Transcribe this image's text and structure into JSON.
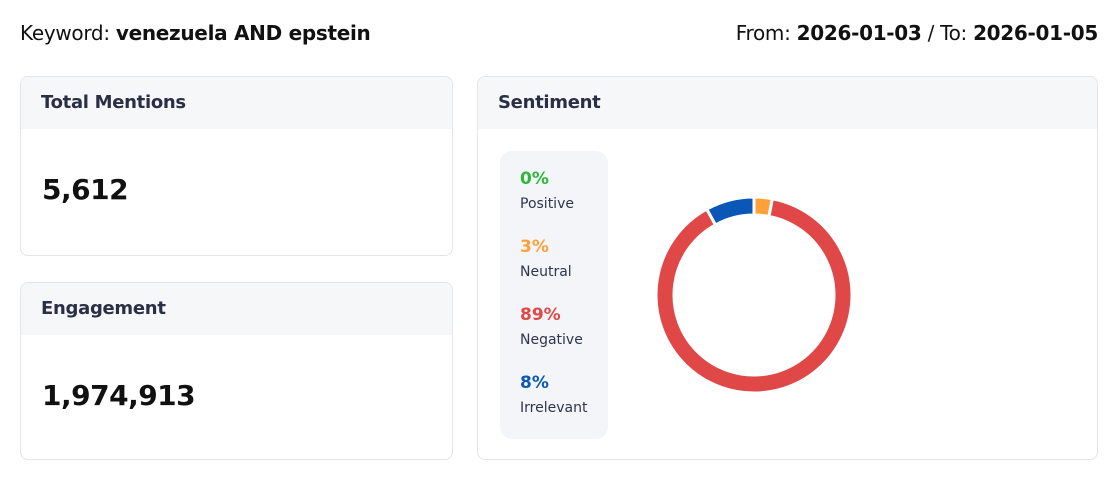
{
  "header": {
    "keyword_label": "Keyword:",
    "keyword": "venezuela AND epstein",
    "from_label": "From:",
    "from": "2026-01-03",
    "to_label": "/ To:",
    "to": "2026-01-05"
  },
  "total_mentions": {
    "title": "Total Mentions",
    "value": "5,612"
  },
  "engagement": {
    "title": "Engagement",
    "value": "1,974,913"
  },
  "sentiment": {
    "title": "Sentiment",
    "items": [
      {
        "pct": "0%",
        "label": "Positive",
        "value": 0,
        "color": "#2db83d"
      },
      {
        "pct": "3%",
        "label": "Neutral",
        "value": 3,
        "color": "#ffa03a"
      },
      {
        "pct": "89%",
        "label": "Negative",
        "value": 89,
        "color": "#e04848"
      },
      {
        "pct": "8%",
        "label": "Irrelevant",
        "value": 8,
        "color": "#0a57b8"
      }
    ]
  }
}
